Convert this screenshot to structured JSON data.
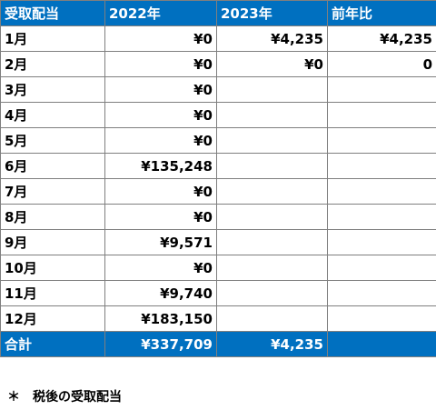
{
  "table": {
    "headers": [
      "受取配当",
      "2022年",
      "2023年",
      "前年比"
    ],
    "rows": [
      [
        "1月",
        "¥0",
        "¥4,235",
        "¥4,235"
      ],
      [
        "2月",
        "¥0",
        "¥0",
        "0"
      ],
      [
        "3月",
        "¥0",
        "",
        ""
      ],
      [
        "4月",
        "¥0",
        "",
        ""
      ],
      [
        "5月",
        "¥0",
        "",
        ""
      ],
      [
        "6月",
        "¥135,248",
        "",
        ""
      ],
      [
        "7月",
        "¥0",
        "",
        ""
      ],
      [
        "8月",
        "¥0",
        "",
        ""
      ],
      [
        "9月",
        "¥9,571",
        "",
        ""
      ],
      [
        "10月",
        "¥0",
        "",
        ""
      ],
      [
        "11月",
        "¥9,740",
        "",
        ""
      ],
      [
        "12月",
        "¥183,150",
        "",
        ""
      ]
    ],
    "total": [
      "合計",
      "¥337,709",
      "¥4,235",
      ""
    ]
  },
  "note": {
    "marker": "＊",
    "text": "税後の受取配当"
  },
  "colors": {
    "header_bg": "#0070c0",
    "header_text": "#ffffff",
    "grid": "#7f7f7f"
  }
}
